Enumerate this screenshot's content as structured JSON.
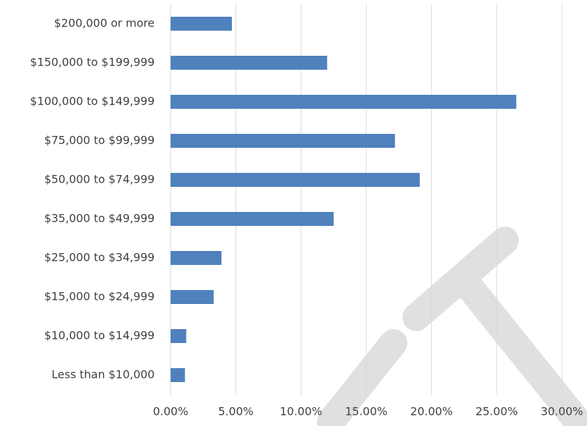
{
  "chart_data": {
    "type": "bar",
    "orientation": "horizontal",
    "categories": [
      "$200,000 or more",
      "$150,000 to $199,999",
      "$100,000 to $149,999",
      "$75,000 to $99,999",
      "$50,000 to $74,999",
      "$35,000 to $49,999",
      "$25,000 to $34,999",
      "$15,000 to $24,999",
      "$10,000 to $14,999",
      "Less than $10,000"
    ],
    "values": [
      4.7,
      12.0,
      26.5,
      17.2,
      19.1,
      12.5,
      3.9,
      3.3,
      1.2,
      1.1
    ],
    "color": "#4f81bd",
    "xlim": [
      0,
      30
    ],
    "xticks": [
      {
        "value": 0,
        "label": "0.00%"
      },
      {
        "value": 5,
        "label": "5.00%"
      },
      {
        "value": 10,
        "label": "10.00%"
      },
      {
        "value": 15,
        "label": "15.00%"
      },
      {
        "value": 20,
        "label": "20.00%"
      },
      {
        "value": 25,
        "label": "25.00%"
      },
      {
        "value": 30,
        "label": "30.00%"
      }
    ],
    "grid": true
  }
}
